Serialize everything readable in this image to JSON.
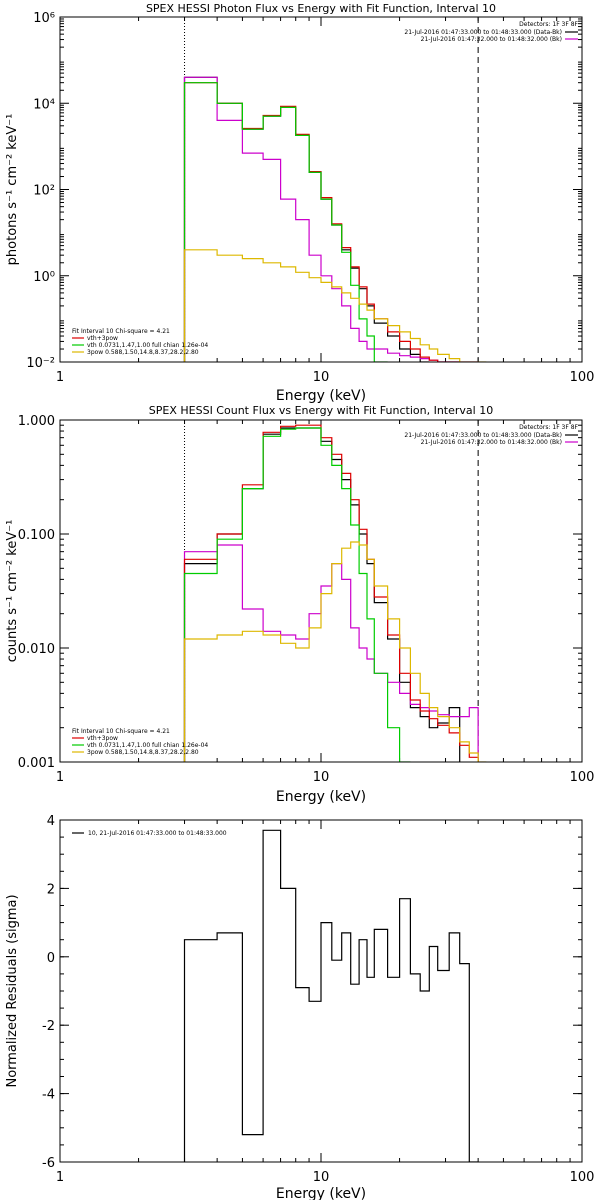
{
  "chart_data": [
    {
      "type": "line",
      "title": "SPEX HESSI Photon Flux vs Energy with Fit Function, Interval 10",
      "xlabel": "Energy (keV)",
      "ylabel": "photons s⁻¹ cm⁻² keV⁻¹",
      "xscale": "log",
      "yscale": "log",
      "xlim": [
        1,
        100
      ],
      "ylim": [
        0.01,
        1000000
      ],
      "xticks": [
        1,
        10,
        100
      ],
      "xtick_labels": [
        "1",
        "10",
        "100"
      ],
      "yticks": [
        0.01,
        1,
        100,
        10000,
        1000000
      ],
      "ytick_labels": [
        "10⁻²",
        "10⁰",
        "10²",
        "10⁴",
        "10⁶"
      ],
      "vlines": [
        {
          "x": 3,
          "style": "dotted"
        },
        {
          "x": 40,
          "style": "dashed"
        }
      ],
      "edges": [
        3,
        4,
        5,
        6,
        7,
        8,
        9,
        10,
        11,
        12,
        13,
        14,
        15,
        16,
        18,
        20,
        22,
        24,
        26,
        28,
        31,
        34,
        37,
        40,
        43,
        46,
        49
      ],
      "legend_top": {
        "header": "Detectors: 1F 3F 8F",
        "entries": [
          {
            "label": "21-Jul-2016 01:47:33.000 to 01:48:33.000 (Data-Bk)",
            "color": "#000000"
          },
          {
            "label": "21-Jul-2016 01:47:32.000 to 01:48:32.000 (Bk)",
            "color": "#cc00cc"
          }
        ]
      },
      "legend_bottom": {
        "header": "Fit Interval 10   Chi-square = 4.21",
        "entries": [
          {
            "label": "vth+3pow",
            "color": "#dd0000"
          },
          {
            "label": "vth 0.0731,1.47,1.00  full chian 1.26e-04",
            "color": "#00cc00"
          },
          {
            "label": "3pow 0.588,1.50,14.8,8.37,28.2,2.80",
            "color": "#ddb800"
          }
        ]
      },
      "series": [
        {
          "name": "Data-Bk",
          "color": "#000000",
          "values": [
            40000,
            10000,
            2500,
            5000,
            8000,
            1800,
            250,
            60,
            15,
            4,
            1.5,
            0.5,
            0.2,
            0.08,
            0.04,
            0.02,
            0.015,
            0.01
          ]
        },
        {
          "name": "Bk",
          "color": "#cc00cc",
          "values": [
            40000,
            4000,
            700,
            500,
            60,
            20,
            3,
            1,
            0.5,
            0.2,
            0.06,
            0.03,
            0.02,
            0.02,
            0.016,
            0.014,
            0.013,
            0.012,
            0.011,
            0.01,
            0.009,
            0.008,
            0.007
          ]
        },
        {
          "name": "vth+3pow",
          "color": "#dd0000",
          "values": [
            30000,
            10000,
            2600,
            5200,
            8500,
            1900,
            260,
            65,
            16,
            4.5,
            1.6,
            0.55,
            0.22,
            0.1,
            0.05,
            0.03,
            0.02,
            0.013,
            0.011,
            0.009,
            0.008
          ]
        },
        {
          "name": "vth",
          "color": "#00cc00",
          "values": [
            30000,
            10000,
            2500,
            5000,
            8000,
            1800,
            250,
            60,
            15,
            3.5,
            0.6,
            0.1,
            0.04,
            0.01
          ]
        },
        {
          "name": "3pow",
          "color": "#ddb800",
          "values": [
            4,
            3,
            2.5,
            2,
            1.6,
            1.2,
            0.9,
            0.7,
            0.55,
            0.4,
            0.3,
            0.22,
            0.16,
            0.1,
            0.07,
            0.05,
            0.035,
            0.025,
            0.02,
            0.015,
            0.012,
            0.01,
            0.008,
            0.007
          ]
        }
      ]
    },
    {
      "type": "line",
      "title": "SPEX HESSI Count Flux vs Energy with Fit Function, Interval 10",
      "xlabel": "Energy (keV)",
      "ylabel": "counts s⁻¹ cm⁻² keV⁻¹",
      "xscale": "log",
      "yscale": "log",
      "xlim": [
        1,
        100
      ],
      "ylim": [
        0.001,
        1
      ],
      "xticks": [
        1,
        10,
        100
      ],
      "xtick_labels": [
        "1",
        "10",
        "100"
      ],
      "yticks": [
        0.001,
        0.01,
        0.1,
        1
      ],
      "ytick_labels": [
        "0.001",
        "0.010",
        "0.100",
        "1.000"
      ],
      "vlines": [
        {
          "x": 3,
          "style": "dotted"
        },
        {
          "x": 40,
          "style": "dashed"
        }
      ],
      "edges": [
        3,
        4,
        5,
        6,
        7,
        8,
        9,
        10,
        11,
        12,
        13,
        14,
        15,
        16,
        18,
        20,
        22,
        24,
        26,
        28,
        31,
        34,
        37,
        40,
        43,
        46,
        49
      ],
      "legend_top": {
        "header": "Detectors: 1F 3F 8F",
        "entries": [
          {
            "label": "21-Jul-2016 01:47:33.000 to 01:48:33.000 (Data-Bk)",
            "color": "#000000"
          },
          {
            "label": "21-Jul-2016 01:47:32.000 to 01:48:32.000 (Bk)",
            "color": "#cc00cc"
          }
        ]
      },
      "legend_bottom": {
        "header": "Fit Interval 10   Chi-square = 4.21",
        "entries": [
          {
            "label": "vth+3pow",
            "color": "#dd0000"
          },
          {
            "label": "vth 0.0731,1.47,1.00  full chian 1.26e-04",
            "color": "#00cc00"
          },
          {
            "label": "3pow 0.588,1.50,14.8,8.37,28.2,2.80",
            "color": "#ddb800"
          }
        ]
      },
      "series": [
        {
          "name": "Data-Bk",
          "color": "#000000",
          "values": [
            0.055,
            0.1,
            0.25,
            0.75,
            0.85,
            0.85,
            0.85,
            0.65,
            0.45,
            0.3,
            0.18,
            0.1,
            0.055,
            0.025,
            0.012,
            0.005,
            0.003,
            0.0025,
            0.002,
            0.0022,
            0.003
          ]
        },
        {
          "name": "Bk",
          "color": "#cc00cc",
          "values": [
            0.07,
            0.08,
            0.022,
            0.014,
            0.013,
            0.012,
            0.02,
            0.035,
            0.055,
            0.04,
            0.015,
            0.01,
            0.008,
            0.006,
            0.005,
            0.004,
            0.0032,
            0.003,
            0.0028,
            0.0026,
            0.0025,
            0.0025,
            0.003
          ]
        },
        {
          "name": "vth+3pow",
          "color": "#dd0000",
          "values": [
            0.06,
            0.1,
            0.27,
            0.78,
            0.88,
            0.9,
            0.9,
            0.7,
            0.5,
            0.34,
            0.2,
            0.11,
            0.06,
            0.028,
            0.013,
            0.006,
            0.0035,
            0.0028,
            0.0024,
            0.0021,
            0.0018,
            0.0014,
            0.0011
          ]
        },
        {
          "name": "vth",
          "color": "#00cc00",
          "values": [
            0.045,
            0.09,
            0.25,
            0.72,
            0.83,
            0.85,
            0.85,
            0.6,
            0.4,
            0.25,
            0.12,
            0.045,
            0.018,
            0.006,
            0.002,
            0.001
          ]
        },
        {
          "name": "3pow",
          "color": "#ddb800",
          "values": [
            0.012,
            0.013,
            0.014,
            0.013,
            0.011,
            0.01,
            0.015,
            0.03,
            0.055,
            0.075,
            0.085,
            0.08,
            0.06,
            0.035,
            0.018,
            0.01,
            0.006,
            0.004,
            0.003,
            0.0025,
            0.002,
            0.0015,
            0.0012,
            0.001
          ]
        }
      ]
    },
    {
      "type": "line",
      "title": "",
      "xlabel": "Energy (keV)",
      "ylabel": "Normalized Residuals (sigma)",
      "xscale": "log",
      "yscale": "linear",
      "xlim": [
        1,
        100
      ],
      "ylim": [
        -6,
        4
      ],
      "xticks": [
        1,
        10,
        100
      ],
      "xtick_labels": [
        "1",
        "10",
        "100"
      ],
      "yticks": [
        -6,
        -4,
        -2,
        0,
        2,
        4
      ],
      "ytick_labels": [
        "-6",
        "-4",
        "-2",
        "0",
        "2",
        "4"
      ],
      "edges": [
        3,
        4,
        5,
        6,
        7,
        8,
        9,
        10,
        11,
        12,
        13,
        14,
        15,
        16,
        18,
        20,
        22,
        24,
        26,
        28,
        31,
        34,
        37,
        40
      ],
      "legend_top": {
        "header": "",
        "entries": [
          {
            "label": "10, 21-Jul-2016 01:47:33.000 to 01:48:33.000",
            "color": "#000000"
          }
        ]
      },
      "series": [
        {
          "name": "10, 21-Jul-2016 01:47:33.000 to 01:48:33.000",
          "color": "#000000",
          "values": [
            0.5,
            0.7,
            -5.2,
            3.7,
            2.0,
            -0.9,
            -1.3,
            1.0,
            -0.1,
            0.7,
            -0.8,
            0.5,
            -0.6,
            0.8,
            -0.6,
            1.7,
            -0.5,
            -1.0,
            0.3,
            -0.4,
            0.7,
            -0.2,
            -6.1
          ]
        }
      ]
    }
  ]
}
